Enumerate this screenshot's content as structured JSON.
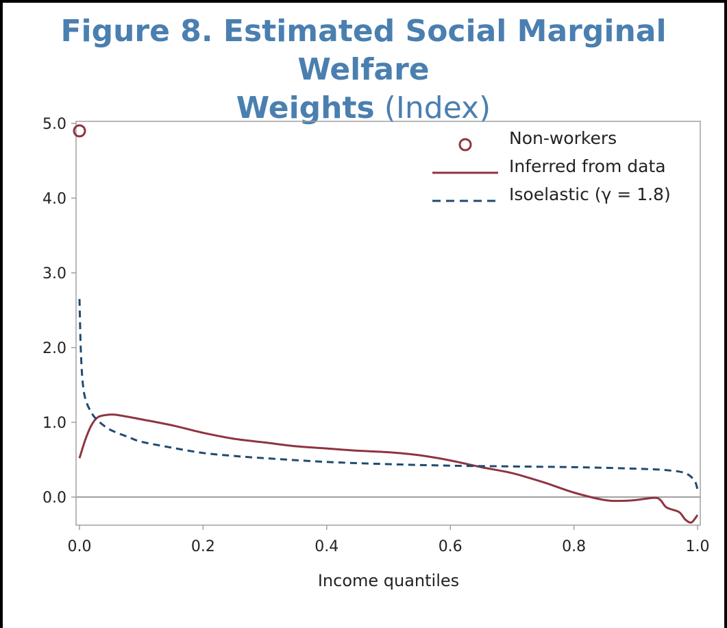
{
  "title": {
    "bold_line1": "Figure 8. Estimated Social Marginal Welfare",
    "bold_line2": "Weights",
    "light_line2": "(Index)"
  },
  "colors": {
    "title": "#4a7fb0",
    "inferred": "#8e3440",
    "isoelastic": "#1f4a72",
    "axis": "#a0a0a0"
  },
  "chart_data": {
    "type": "line",
    "xlabel": "Income quantiles",
    "ylabel": "",
    "xlim": [
      0.0,
      1.0
    ],
    "ylim": [
      -0.35,
      5.0
    ],
    "x_ticks": [
      "0.0",
      "0.2",
      "0.4",
      "0.6",
      "0.8",
      "1.0"
    ],
    "y_ticks": [
      "0.0",
      "1.0",
      "2.0",
      "3.0",
      "4.0",
      "5.0"
    ],
    "legend_position": "top-right",
    "zero_line": true,
    "series": [
      {
        "name": "Non-workers",
        "style": "marker-circle",
        "points": [
          [
            0.0,
            4.9
          ]
        ]
      },
      {
        "name": "Inferred from data",
        "style": "solid",
        "points": [
          [
            0.0,
            0.52
          ],
          [
            0.01,
            0.78
          ],
          [
            0.02,
            0.97
          ],
          [
            0.03,
            1.07
          ],
          [
            0.045,
            1.1
          ],
          [
            0.06,
            1.1
          ],
          [
            0.1,
            1.04
          ],
          [
            0.15,
            0.96
          ],
          [
            0.2,
            0.86
          ],
          [
            0.25,
            0.78
          ],
          [
            0.3,
            0.73
          ],
          [
            0.35,
            0.68
          ],
          [
            0.4,
            0.65
          ],
          [
            0.45,
            0.62
          ],
          [
            0.5,
            0.6
          ],
          [
            0.55,
            0.56
          ],
          [
            0.6,
            0.49
          ],
          [
            0.65,
            0.4
          ],
          [
            0.7,
            0.32
          ],
          [
            0.75,
            0.2
          ],
          [
            0.8,
            0.06
          ],
          [
            0.85,
            -0.04
          ],
          [
            0.88,
            -0.05
          ],
          [
            0.9,
            -0.04
          ],
          [
            0.93,
            -0.01
          ],
          [
            0.94,
            -0.04
          ],
          [
            0.95,
            -0.14
          ],
          [
            0.97,
            -0.2
          ],
          [
            0.98,
            -0.3
          ],
          [
            0.99,
            -0.34
          ],
          [
            1.0,
            -0.24
          ]
        ]
      },
      {
        "name": "Isoelastic (γ = 1.8)",
        "style": "dashed",
        "points": [
          [
            0.0,
            2.65
          ],
          [
            0.002,
            2.0
          ],
          [
            0.005,
            1.55
          ],
          [
            0.01,
            1.3
          ],
          [
            0.02,
            1.12
          ],
          [
            0.03,
            1.02
          ],
          [
            0.05,
            0.9
          ],
          [
            0.08,
            0.8
          ],
          [
            0.1,
            0.74
          ],
          [
            0.15,
            0.66
          ],
          [
            0.2,
            0.59
          ],
          [
            0.25,
            0.55
          ],
          [
            0.3,
            0.52
          ],
          [
            0.4,
            0.47
          ],
          [
            0.5,
            0.44
          ],
          [
            0.6,
            0.42
          ],
          [
            0.7,
            0.41
          ],
          [
            0.8,
            0.4
          ],
          [
            0.9,
            0.38
          ],
          [
            0.95,
            0.36
          ],
          [
            0.98,
            0.32
          ],
          [
            0.995,
            0.22
          ],
          [
            1.0,
            0.1
          ]
        ]
      }
    ]
  }
}
